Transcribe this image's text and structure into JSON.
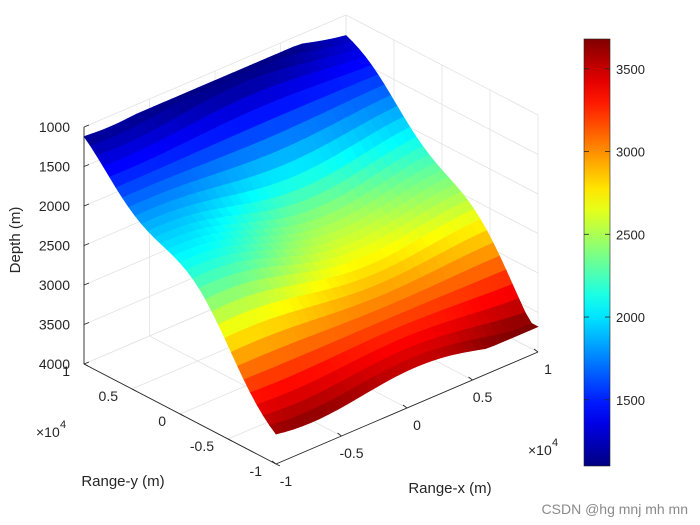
{
  "chart_data": {
    "type": "surface3d",
    "title": "",
    "xlabel": "Range-x (m)",
    "ylabel": "Range-y (m)",
    "zlabel": "Depth (m)",
    "x_exponent_label": "×10",
    "x_exponent_power": "4",
    "y_exponent_label": "×10",
    "y_exponent_power": "4",
    "x_ticks": [
      "-1",
      "-0.5",
      "0",
      "0.5",
      "1"
    ],
    "y_ticks": [
      "-1",
      "-0.5",
      "0",
      "0.5",
      "1"
    ],
    "z_ticks": [
      "1000",
      "1500",
      "2000",
      "2500",
      "3000",
      "3500",
      "4000"
    ],
    "xlim": [
      -10000,
      10000
    ],
    "ylim": [
      -10000,
      10000
    ],
    "zlim": [
      1000,
      4000
    ],
    "z_reversed": true,
    "colormap": "jet (reversed)",
    "colorbar": {
      "range": [
        1100,
        3680
      ],
      "ticks": [
        "1500",
        "2000",
        "2500",
        "3000",
        "3500"
      ],
      "tick_values": [
        1500,
        2000,
        2500,
        3000,
        3500
      ]
    },
    "corner_depths": {
      "x_min_y_max": 1120,
      "x_max_y_max": 1220,
      "x_max_y_min": 3610,
      "x_min_y_min": 3450
    },
    "grid": true
  },
  "watermark": "CSDN @hg mnj mh mn"
}
